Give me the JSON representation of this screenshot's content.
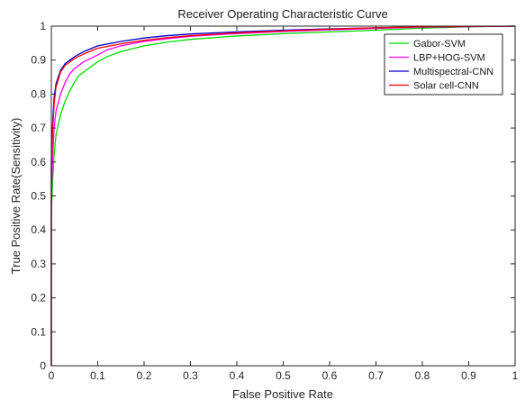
{
  "chart_data": {
    "type": "line",
    "title": "Receiver Operating Characteristic Curve",
    "xlabel": "False Positive Rate",
    "ylabel": "True Positive Rate(Sensitivity)",
    "xlim": [
      0,
      1
    ],
    "ylim": [
      0,
      1
    ],
    "x_ticks": [
      "0",
      "0.1",
      "0.2",
      "0.3",
      "0.4",
      "0.5",
      "0.6",
      "0.7",
      "0.8",
      "0.9",
      "1"
    ],
    "y_ticks": [
      "0",
      "0.1",
      "0.2",
      "0.3",
      "0.4",
      "0.5",
      "0.6",
      "0.7",
      "0.8",
      "0.9",
      "1"
    ],
    "grid": false,
    "legend_position": "top-right",
    "series": [
      {
        "name": "Gabor-SVM",
        "color": "#00dd00",
        "points": [
          [
            0,
            0
          ],
          [
            0,
            0.45
          ],
          [
            0.003,
            0.55
          ],
          [
            0.006,
            0.62
          ],
          [
            0.01,
            0.68
          ],
          [
            0.02,
            0.74
          ],
          [
            0.03,
            0.78
          ],
          [
            0.04,
            0.81
          ],
          [
            0.05,
            0.835
          ],
          [
            0.06,
            0.855
          ],
          [
            0.08,
            0.875
          ],
          [
            0.1,
            0.895
          ],
          [
            0.12,
            0.91
          ],
          [
            0.15,
            0.925
          ],
          [
            0.2,
            0.942
          ],
          [
            0.25,
            0.953
          ],
          [
            0.3,
            0.961
          ],
          [
            0.4,
            0.971
          ],
          [
            0.5,
            0.978
          ],
          [
            0.6,
            0.983
          ],
          [
            0.7,
            0.988
          ],
          [
            0.8,
            0.994
          ],
          [
            0.9,
            0.998
          ],
          [
            1,
            1
          ]
        ]
      },
      {
        "name": "LBP+HOG-SVM",
        "color": "#ff00ff",
        "points": [
          [
            0,
            0
          ],
          [
            0,
            0.5
          ],
          [
            0.003,
            0.62
          ],
          [
            0.006,
            0.7
          ],
          [
            0.01,
            0.75
          ],
          [
            0.02,
            0.8
          ],
          [
            0.03,
            0.835
          ],
          [
            0.04,
            0.86
          ],
          [
            0.05,
            0.875
          ],
          [
            0.07,
            0.895
          ],
          [
            0.1,
            0.915
          ],
          [
            0.12,
            0.93
          ],
          [
            0.15,
            0.942
          ],
          [
            0.2,
            0.955
          ],
          [
            0.25,
            0.963
          ],
          [
            0.3,
            0.97
          ],
          [
            0.4,
            0.978
          ],
          [
            0.5,
            0.984
          ],
          [
            0.6,
            0.989
          ],
          [
            0.7,
            0.993
          ],
          [
            0.8,
            0.997
          ],
          [
            1,
            1
          ]
        ]
      },
      {
        "name": "Multispectral-CNN",
        "color": "#0000cc",
        "points": [
          [
            0,
            0
          ],
          [
            0,
            0.6
          ],
          [
            0.003,
            0.72
          ],
          [
            0.006,
            0.79
          ],
          [
            0.01,
            0.83
          ],
          [
            0.02,
            0.87
          ],
          [
            0.03,
            0.89
          ],
          [
            0.05,
            0.91
          ],
          [
            0.07,
            0.925
          ],
          [
            0.1,
            0.942
          ],
          [
            0.15,
            0.955
          ],
          [
            0.2,
            0.965
          ],
          [
            0.25,
            0.972
          ],
          [
            0.3,
            0.977
          ],
          [
            0.4,
            0.983
          ],
          [
            0.5,
            0.988
          ],
          [
            0.6,
            0.992
          ],
          [
            0.7,
            0.995
          ],
          [
            0.8,
            0.998
          ],
          [
            1,
            1
          ]
        ]
      },
      {
        "name": "Solar cell-CNN",
        "color": "#ff0000",
        "points": [
          [
            0,
            0
          ],
          [
            0,
            0.58
          ],
          [
            0.003,
            0.7
          ],
          [
            0.006,
            0.77
          ],
          [
            0.01,
            0.82
          ],
          [
            0.02,
            0.865
          ],
          [
            0.03,
            0.885
          ],
          [
            0.05,
            0.905
          ],
          [
            0.07,
            0.918
          ],
          [
            0.1,
            0.935
          ],
          [
            0.15,
            0.948
          ],
          [
            0.2,
            0.958
          ],
          [
            0.25,
            0.966
          ],
          [
            0.3,
            0.972
          ],
          [
            0.4,
            0.98
          ],
          [
            0.5,
            0.986
          ],
          [
            0.6,
            0.991
          ],
          [
            0.7,
            0.995
          ],
          [
            0.8,
            0.998
          ],
          [
            1,
            1
          ]
        ]
      }
    ]
  }
}
